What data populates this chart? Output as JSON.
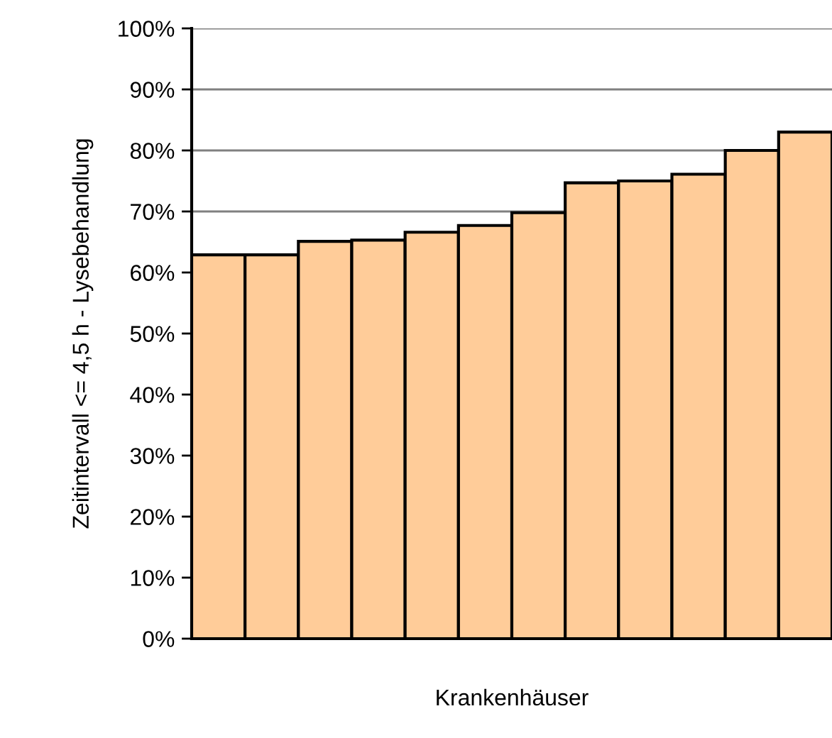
{
  "chart_data": {
    "type": "bar",
    "xlabel": "Krankenhäuser",
    "ylabel": "Zeitintervall <= 4,5 h - Lysebehandlung",
    "categories": [
      null,
      null,
      null,
      null,
      null,
      null,
      null,
      null,
      null,
      null,
      null,
      null
    ],
    "values": [
      62.9,
      62.9,
      65.1,
      65.3,
      66.6,
      67.7,
      69.8,
      74.7,
      75.0,
      76.1,
      80.0,
      83.0
    ],
    "color": "#ffcc99",
    "ylim": [
      0,
      100
    ],
    "yticks": [
      {
        "value": 0,
        "label": "0%"
      },
      {
        "value": 10,
        "label": "10%"
      },
      {
        "value": 20,
        "label": "20%"
      },
      {
        "value": 30,
        "label": "30%"
      },
      {
        "value": 40,
        "label": "40%"
      },
      {
        "value": 50,
        "label": "50%"
      },
      {
        "value": 60,
        "label": "60%"
      },
      {
        "value": 70,
        "label": "70%"
      },
      {
        "value": 80,
        "label": "80%"
      },
      {
        "value": 90,
        "label": "90%"
      },
      {
        "value": 100,
        "label": "100%"
      }
    ],
    "grid": "y"
  }
}
